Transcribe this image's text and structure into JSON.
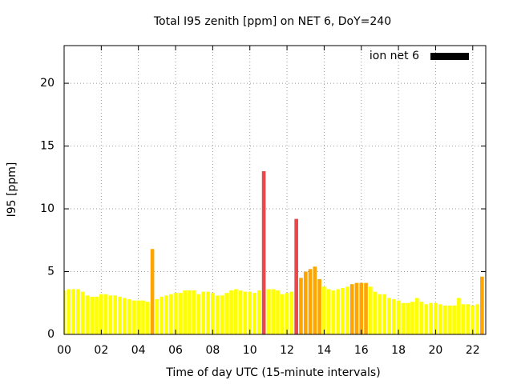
{
  "chart_data": {
    "type": "bar",
    "title": "Total I95 zenith [ppm] on NET 6, DoY=240",
    "x_label": "Time of day UTC (15-minute intervals)",
    "y_label": "I95 [ppm]",
    "legend": "top-right",
    "legend_color": "#000000",
    "grid": true,
    "xlim": [
      0,
      22.7
    ],
    "ylim": [
      0,
      23
    ],
    "xticks": [
      {
        "value": 0,
        "label": "00"
      },
      {
        "value": 2,
        "label": "02"
      },
      {
        "value": 4,
        "label": "04"
      },
      {
        "value": 6,
        "label": "06"
      },
      {
        "value": 8,
        "label": "08"
      },
      10,
      12,
      14,
      16,
      18,
      20,
      22
    ],
    "yticks": [
      0,
      5,
      10,
      15,
      20
    ],
    "bar_width": 0.2,
    "x": [
      0,
      0.25,
      0.5,
      0.75,
      1,
      1.25,
      1.5,
      1.75,
      2,
      2.25,
      2.5,
      2.75,
      3,
      3.25,
      3.5,
      3.75,
      4,
      4.25,
      4.5,
      4.75,
      5,
      5.25,
      5.5,
      5.75,
      6,
      6.25,
      6.5,
      6.75,
      7,
      7.25,
      7.5,
      7.75,
      8,
      8.25,
      8.5,
      8.75,
      9,
      9.25,
      9.5,
      9.75,
      10,
      10.25,
      10.5,
      10.75,
      11,
      11.25,
      11.5,
      11.75,
      12,
      12.25,
      12.5,
      12.75,
      13,
      13.25,
      13.5,
      13.75,
      14,
      14.25,
      14.5,
      14.75,
      15,
      15.25,
      15.5,
      15.75,
      16,
      16.25,
      16.5,
      16.75,
      17,
      17.25,
      17.5,
      17.75,
      18,
      18.25,
      18.5,
      18.75,
      19,
      19.25,
      19.5,
      19.75,
      20,
      20.25,
      20.5,
      20.75,
      21,
      21.25,
      21.5,
      21.75,
      22,
      22.25,
      22.5
    ],
    "series": [
      {
        "name": "ion net 6",
        "values": [
          3.5,
          3.6,
          3.6,
          3.6,
          3.4,
          3.1,
          3.0,
          3.0,
          3.2,
          3.2,
          3.1,
          3.1,
          3.0,
          2.9,
          2.8,
          2.7,
          2.7,
          2.7,
          2.6,
          6.8,
          2.8,
          3.0,
          3.1,
          3.2,
          3.3,
          3.3,
          3.5,
          3.5,
          3.5,
          3.2,
          3.4,
          3.4,
          3.3,
          3.1,
          3.1,
          3.3,
          3.5,
          3.6,
          3.5,
          3.4,
          3.4,
          3.3,
          3.5,
          13.0,
          3.6,
          3.6,
          3.5,
          3.2,
          3.3,
          3.4,
          9.2,
          4.5,
          5.0,
          5.2,
          5.4,
          4.4,
          3.8,
          3.6,
          3.5,
          3.6,
          3.7,
          3.8,
          4.0,
          4.1,
          4.1,
          4.1,
          3.8,
          3.4,
          3.2,
          3.2,
          2.9,
          2.8,
          2.7,
          2.5,
          2.5,
          2.6,
          2.9,
          2.6,
          2.4,
          2.5,
          2.5,
          2.4,
          2.3,
          2.3,
          2.3,
          2.9,
          2.4,
          2.4,
          2.3,
          2.4,
          4.6
        ],
        "colors": [
          "#ffff00",
          "#ffff00",
          "#ffff00",
          "#ffff00",
          "#ffff00",
          "#ffff00",
          "#ffff00",
          "#ffff00",
          "#ffff00",
          "#ffff00",
          "#ffff00",
          "#ffff00",
          "#ffff00",
          "#ffff00",
          "#ffff00",
          "#ffff00",
          "#ffff00",
          "#ffff00",
          "#ffff00",
          "#ffa500",
          "#ffff00",
          "#ffff00",
          "#ffff00",
          "#ffff00",
          "#ffff00",
          "#ffff00",
          "#ffff00",
          "#ffff00",
          "#ffff00",
          "#ffff00",
          "#ffff00",
          "#ffff00",
          "#ffff00",
          "#ffff00",
          "#ffff00",
          "#ffff00",
          "#ffff00",
          "#ffff00",
          "#ffff00",
          "#ffff00",
          "#ffff00",
          "#ffff00",
          "#ffff00",
          "#e8484a",
          "#ffff00",
          "#ffff00",
          "#ffff00",
          "#ffff00",
          "#ffff00",
          "#ffff00",
          "#e8484a",
          "#ffa500",
          "#ffa500",
          "#ffa500",
          "#ffa500",
          "#ffa500",
          "#ffff00",
          "#ffff00",
          "#ffff00",
          "#ffff00",
          "#ffff00",
          "#ffff00",
          "#ffa500",
          "#ffa500",
          "#ffa500",
          "#ffa500",
          "#ffff00",
          "#ffff00",
          "#ffff00",
          "#ffff00",
          "#ffff00",
          "#ffff00",
          "#ffff00",
          "#ffff00",
          "#ffff00",
          "#ffff00",
          "#ffff00",
          "#ffff00",
          "#ffff00",
          "#ffff00",
          "#ffff00",
          "#ffff00",
          "#ffff00",
          "#ffff00",
          "#ffff00",
          "#ffff00",
          "#ffff00",
          "#ffff00",
          "#ffff00",
          "#ffff00",
          "#ffa500"
        ]
      }
    ]
  }
}
